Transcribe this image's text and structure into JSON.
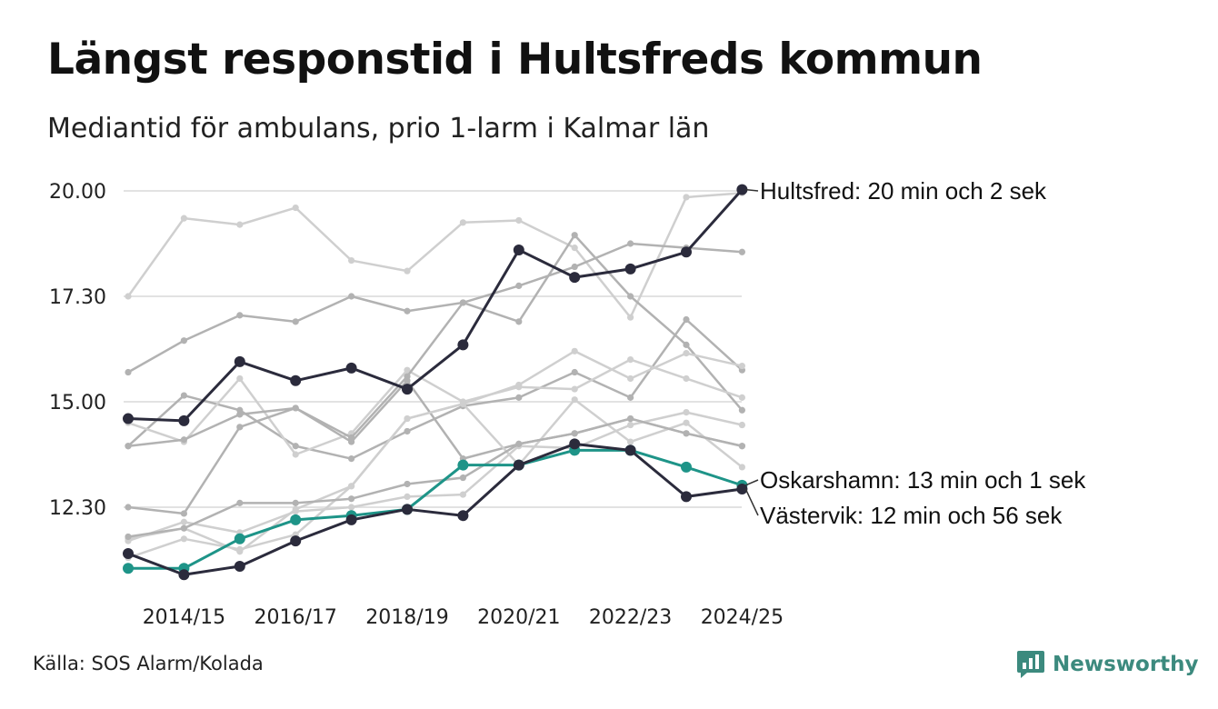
{
  "chart_data": {
    "type": "line",
    "title": "Längst responstid i Hultsfreds kommun",
    "subtitle": "Mediantid för ambulans, prio 1-larm i Kalmar län",
    "source": "Källa: SOS Alarm/Kolada",
    "brand": "Newsworthy",
    "xlabel": "",
    "ylabel": "",
    "x": [
      "2013/14",
      "2014/15",
      "2015/16",
      "2016/17",
      "2017/18",
      "2018/19",
      "2019/20",
      "2020/21",
      "2021/22",
      "2022/23",
      "2023/24",
      "2024/25"
    ],
    "x_tick_labels": [
      "2014/15",
      "2016/17",
      "2018/19",
      "2020/21",
      "2022/23",
      "2024/25"
    ],
    "y_ticks": [
      12.5,
      15.0,
      17.5,
      20.0
    ],
    "y_tick_labels": [
      "12.30",
      "15.00",
      "17.30",
      "20.00"
    ],
    "ylim": [
      10.4,
      20.6
    ],
    "unit": "minutes (decimal)",
    "grid": true,
    "colors": {
      "highlight_dark": "#2b2b3c",
      "highlight_teal": "#1e9488",
      "background_light": "#cfcfcf",
      "background_mid": "#b2b2b2",
      "grid": "#e2e2e2"
    },
    "series": [
      {
        "name": "Hultsfred",
        "role": "dark",
        "values": [
          14.6,
          14.55,
          15.95,
          15.5,
          15.8,
          15.3,
          16.35,
          18.6,
          17.95,
          18.15,
          18.55,
          20.03
        ]
      },
      {
        "name": "Oskarshamn",
        "role": "teal",
        "values": [
          11.05,
          11.05,
          11.75,
          12.2,
          12.3,
          12.45,
          13.5,
          13.5,
          13.85,
          13.85,
          13.45,
          13.02
        ]
      },
      {
        "name": "Västervik",
        "role": "dark",
        "values": [
          11.4,
          10.9,
          11.1,
          11.7,
          12.2,
          12.45,
          12.3,
          13.5,
          14.0,
          13.85,
          12.75,
          12.93
        ]
      },
      {
        "name": "",
        "role": "light",
        "values": [
          17.5,
          19.35,
          19.2,
          19.6,
          18.35,
          18.1,
          19.25,
          19.3,
          18.65,
          17.0,
          19.85,
          19.95
        ]
      },
      {
        "name": "",
        "role": "mid",
        "values": [
          15.7,
          16.45,
          17.05,
          16.9,
          17.5,
          17.15,
          17.35,
          16.9,
          18.95,
          17.5,
          16.35,
          14.8
        ]
      },
      {
        "name": "",
        "role": "mid",
        "values": [
          13.95,
          15.15,
          14.8,
          13.95,
          13.65,
          14.3,
          14.9,
          15.1,
          15.7,
          15.1,
          16.95,
          15.75
        ]
      },
      {
        "name": "",
        "role": "light",
        "values": [
          14.5,
          14.05,
          15.55,
          13.75,
          14.25,
          15.75,
          15.0,
          15.35,
          15.3,
          16.0,
          15.55,
          15.1
        ]
      },
      {
        "name": "",
        "role": "mid",
        "values": [
          12.5,
          12.35,
          14.4,
          14.85,
          14.15,
          15.6,
          17.35,
          17.75,
          18.2,
          18.75,
          18.65,
          18.55
        ]
      },
      {
        "name": "",
        "role": "light",
        "values": [
          11.75,
          12.0,
          11.45,
          12.45,
          13.0,
          14.6,
          14.95,
          15.4,
          16.2,
          15.55,
          16.15,
          15.85
        ]
      },
      {
        "name": "",
        "role": "mid",
        "values": [
          13.95,
          14.1,
          14.7,
          14.85,
          14.05,
          15.5,
          13.65,
          14.0,
          14.25,
          14.6,
          14.25,
          13.95
        ]
      },
      {
        "name": "",
        "role": "light",
        "values": [
          11.3,
          11.75,
          11.5,
          11.85,
          13.0,
          14.6,
          14.95,
          13.5,
          15.05,
          14.05,
          14.5,
          13.45
        ]
      },
      {
        "name": "",
        "role": "light",
        "values": [
          11.7,
          12.15,
          11.9,
          12.4,
          12.5,
          12.75,
          12.8,
          13.95,
          13.9,
          14.45,
          14.75,
          14.45
        ]
      },
      {
        "name": "",
        "role": "mid",
        "values": [
          11.8,
          12.0,
          12.6,
          12.6,
          12.7,
          13.05,
          13.2,
          14.0,
          14.25,
          14.6,
          14.25,
          13.95
        ]
      }
    ],
    "annotations": [
      {
        "series": "Hultsfred",
        "text": "Hultsfred: 20 min och 2 sek"
      },
      {
        "series": "Oskarshamn",
        "text": "Oskarshamn: 13 min och 1 sek"
      },
      {
        "series": "Västervik",
        "text": "Västervik: 12 min och 56 sek"
      }
    ]
  }
}
